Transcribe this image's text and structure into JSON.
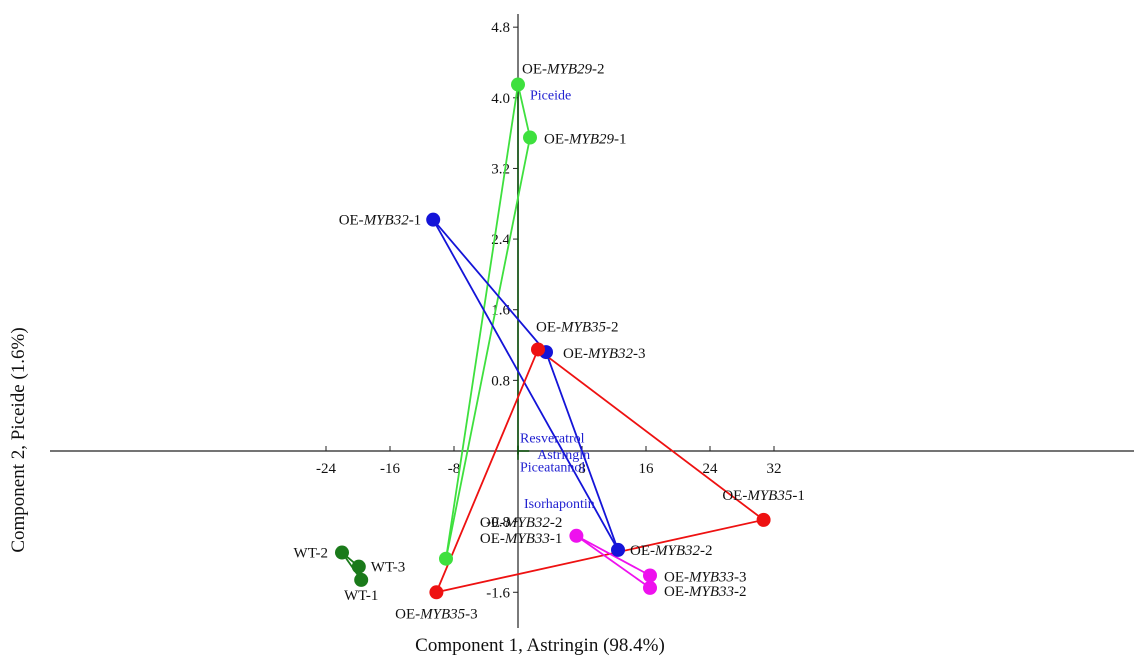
{
  "chart_data": {
    "type": "scatter",
    "xlabel": "Component 1, Astringin (98.4%)",
    "ylabel": "Component 2, Piceide (1.6%)",
    "xlim": [
      -32,
      40
    ],
    "ylim": [
      -1.95,
      5.05
    ],
    "x_ticks": [
      -24,
      -16,
      -8,
      8,
      16,
      24,
      32
    ],
    "y_ticks": [
      -1.6,
      -0.8,
      0.8,
      1.6,
      2.4,
      3.2,
      4.0,
      4.8
    ],
    "grid": false,
    "series": [
      {
        "color": "#1a7a1a",
        "points": [
          {
            "label": "WT-1",
            "x": -19.6,
            "y": -1.46
          },
          {
            "label": "WT-2",
            "x": -22.0,
            "y": -1.15
          },
          {
            "label": "WT-3",
            "x": -19.9,
            "y": -1.31
          }
        ]
      },
      {
        "color": "#3ee03e",
        "points": [
          {
            "label": "OE-MYB29-1",
            "label_parts": [
              "OE-",
              "MYB29",
              "-1"
            ],
            "x": 1.5,
            "y": 3.55
          },
          {
            "label": "OE-MYB29-2",
            "label_parts": [
              "OE-",
              "MYB29",
              "-2"
            ],
            "x": 0.0,
            "y": 4.15
          },
          {
            "label": "",
            "x": -9.0,
            "y": -1.22
          }
        ]
      },
      {
        "color": "#1414d8",
        "points": [
          {
            "label": "OE-MYB32-1",
            "label_parts": [
              "OE-",
              "MYB32",
              "-1"
            ],
            "x": -10.6,
            "y": 2.62
          },
          {
            "label": "OE-MYB32-2",
            "label_parts": [
              "OE-",
              "MYB32",
              "-2"
            ],
            "x": 12.5,
            "y": -1.12
          },
          {
            "label": "OE-MYB32-3",
            "label_parts": [
              "OE-",
              "MYB32",
              "-3"
            ],
            "x": 3.5,
            "y": 1.12
          }
        ]
      },
      {
        "color": "#ee1111",
        "points": [
          {
            "label": "OE-MYB35-1",
            "label_parts": [
              "OE-",
              "MYB35",
              "-1"
            ],
            "x": 30.7,
            "y": -0.78
          },
          {
            "label": "OE-MYB35-2",
            "label_parts": [
              "OE-",
              "MYB35",
              "-2"
            ],
            "x": 2.5,
            "y": 1.15
          },
          {
            "label": "OE-MYB35-3",
            "label_parts": [
              "OE-",
              "MYB35",
              "-3"
            ],
            "x": -10.2,
            "y": -1.6
          }
        ]
      },
      {
        "color": "#ee11ee",
        "points": [
          {
            "label": "OE-MYB33-1",
            "label_parts": [
              "OE-",
              "MYB33",
              "-1"
            ],
            "x": 7.3,
            "y": -0.96
          },
          {
            "label": "OE-MYB33-2",
            "label_parts": [
              "OE-",
              "MYB33",
              "-2"
            ],
            "x": 16.5,
            "y": -1.55
          },
          {
            "label": "OE-MYB33-3",
            "label_parts": [
              "OE-",
              "MYB33",
              "-3"
            ],
            "x": 16.5,
            "y": -1.41
          }
        ]
      }
    ],
    "extra_labels": [
      {
        "label": "OE-MYB32-2",
        "label_parts": [
          "OE-",
          "MYB32",
          "-2"
        ],
        "x": 7.3,
        "y": -0.96
      }
    ],
    "variables": [
      {
        "name": "Piceide",
        "x": 0.0,
        "y": 4.15
      },
      {
        "name": "Resveratrol",
        "x": 0.0,
        "y": 0.06
      },
      {
        "name": "Piceatannol",
        "x": 0.0,
        "y": -0.04
      },
      {
        "name": "Astringin",
        "x": 1.4,
        "y": 0.0
      },
      {
        "name": "Isorhapontin",
        "x": 0.0,
        "y": -0.1
      }
    ]
  }
}
